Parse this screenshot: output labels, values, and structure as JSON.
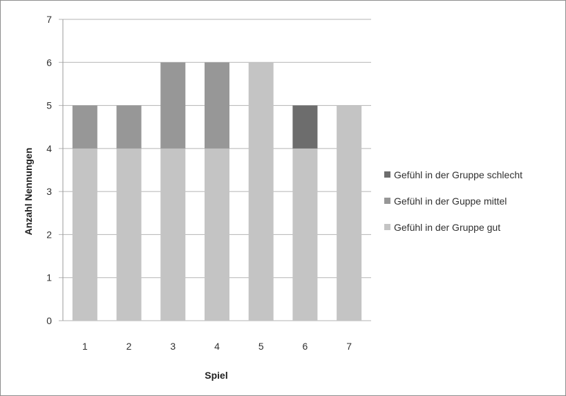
{
  "chart_data": {
    "type": "bar",
    "stacked": true,
    "categories": [
      "1",
      "2",
      "3",
      "4",
      "5",
      "6",
      "7"
    ],
    "series": [
      {
        "name": "Gefühl in der Gruppe gut",
        "color": "#c4c4c4",
        "values": [
          4,
          4,
          4,
          4,
          6,
          4,
          5
        ]
      },
      {
        "name": "Gefühl in der Guppe mittel",
        "color": "#979797",
        "values": [
          1,
          1,
          2,
          2,
          0,
          0,
          0
        ]
      },
      {
        "name": "Gefühl in der Gruppe schlecht",
        "color": "#6d6d6d",
        "values": [
          0,
          0,
          0,
          0,
          0,
          1,
          0
        ]
      }
    ],
    "legend_order": [
      2,
      1,
      0
    ],
    "xlabel": "Spiel",
    "ylabel": "Anzahl Nennungen",
    "ylim": [
      0,
      7
    ],
    "yticks": [
      "0",
      "1",
      "2",
      "3",
      "4",
      "5",
      "6",
      "7"
    ],
    "grid": true,
    "legend_position": "right"
  }
}
